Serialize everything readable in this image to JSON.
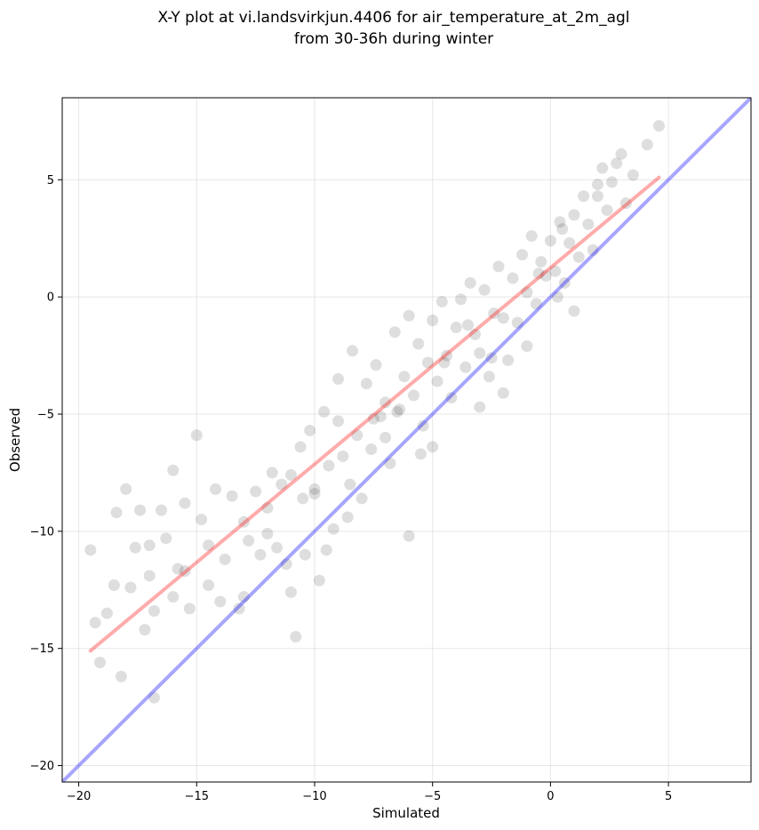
{
  "title_line1": "X-Y plot at vi.landsvirkjun.4406 for air_temperature_at_2m_agl",
  "title_line2": "from 30-36h during winter",
  "chart_data": {
    "type": "scatter",
    "title": "X-Y plot at vi.landsvirkjun.4406 for air_temperature_at_2m_agl from 30-36h during winter",
    "xlabel": "Simulated",
    "ylabel": "Observed",
    "xlim": [
      -20.7,
      8.5
    ],
    "ylim": [
      -20.7,
      8.5
    ],
    "xticks": [
      -20,
      -15,
      -10,
      -5,
      0,
      5
    ],
    "yticks": [
      -20,
      -15,
      -10,
      -5,
      0,
      5
    ],
    "xtick_labels": [
      "−20",
      "−15",
      "−10",
      "−5",
      "0",
      "5"
    ],
    "ytick_labels": [
      "−20",
      "−15",
      "−10",
      "−5",
      "0",
      "5"
    ],
    "grid": true,
    "point_color": "#000000",
    "point_alpha": 0.08,
    "identity_line": {
      "x": [
        -20.7,
        8.5
      ],
      "y": [
        -20.7,
        8.5
      ],
      "color": "#0000ff"
    },
    "fit_line": {
      "x": [
        -19.5,
        4.6
      ],
      "y": [
        -15.1,
        5.1
      ],
      "color": "#ff0000"
    },
    "points": {
      "x": [
        -19.5,
        -19.3,
        -19.1,
        -18.8,
        -18.5,
        -18.4,
        -18.2,
        -18.0,
        -17.8,
        -17.6,
        -17.4,
        -17.2,
        -17.0,
        -16.8,
        -16.8,
        -16.5,
        -16.3,
        -16.0,
        -15.8,
        -15.5,
        -15.3,
        -15.0,
        -14.8,
        -14.5,
        -14.2,
        -14.0,
        -13.8,
        -13.5,
        -13.2,
        -13.0,
        -12.8,
        -12.5,
        -12.3,
        -12.0,
        -11.8,
        -11.6,
        -11.4,
        -11.2,
        -11.0,
        -10.8,
        -10.6,
        -10.4,
        -10.2,
        -10.0,
        -9.8,
        -9.6,
        -9.4,
        -9.2,
        -9.0,
        -8.8,
        -8.6,
        -8.4,
        -8.2,
        -8.0,
        -7.8,
        -7.6,
        -7.4,
        -7.2,
        -7.0,
        -6.8,
        -6.6,
        -6.4,
        -6.2,
        -6.0,
        -5.8,
        -5.6,
        -5.4,
        -5.2,
        -5.0,
        -4.8,
        -4.6,
        -4.4,
        -4.2,
        -4.0,
        -3.8,
        -3.6,
        -3.4,
        -3.2,
        -3.0,
        -2.8,
        -2.6,
        -2.4,
        -2.2,
        -2.0,
        -1.8,
        -1.6,
        -1.4,
        -1.2,
        -1.0,
        -0.8,
        -0.6,
        -0.4,
        -0.2,
        0.0,
        0.2,
        0.4,
        0.6,
        0.8,
        1.0,
        1.2,
        1.4,
        1.6,
        1.8,
        2.0,
        2.2,
        2.4,
        2.6,
        2.8,
        3.0,
        3.2,
        3.5,
        4.1,
        4.6,
        -17.0,
        -12.0,
        -10.5,
        -9.0,
        -6.0,
        -5.0,
        -3.0,
        -1.0,
        1.0,
        2.0,
        -15.5,
        -13.0,
        -11.0,
        -8.5,
        -7.5,
        -4.5,
        -2.5,
        -0.5,
        0.5,
        -16.0,
        -10.0,
        -6.5,
        -3.5,
        -14.5,
        -9.5,
        -7.0,
        -5.5,
        -2.0,
        0.3
      ],
      "y": [
        -10.8,
        -13.9,
        -15.6,
        -13.5,
        -12.3,
        -9.2,
        -16.2,
        -8.2,
        -12.4,
        -10.7,
        -9.1,
        -14.2,
        -10.6,
        -17.1,
        -13.4,
        -9.1,
        -10.3,
        -7.4,
        -11.6,
        -8.8,
        -13.3,
        -5.9,
        -9.5,
        -12.3,
        -8.2,
        -13.0,
        -11.2,
        -8.5,
        -13.3,
        -9.6,
        -10.4,
        -8.3,
        -11.0,
        -9.0,
        -7.5,
        -10.7,
        -8.0,
        -11.4,
        -7.6,
        -14.5,
        -6.4,
        -11.0,
        -5.7,
        -8.4,
        -12.1,
        -4.9,
        -7.2,
        -9.9,
        -3.5,
        -6.8,
        -9.4,
        -2.3,
        -5.9,
        -8.6,
        -3.7,
        -6.5,
        -2.9,
        -5.1,
        -4.5,
        -7.1,
        -1.5,
        -4.8,
        -3.4,
        -0.8,
        -4.2,
        -2.0,
        -5.5,
        -2.8,
        -1.0,
        -3.6,
        -0.2,
        -2.5,
        -4.3,
        -1.3,
        -0.1,
        -3.0,
        0.6,
        -1.6,
        -2.4,
        0.3,
        -3.4,
        -0.7,
        1.3,
        -0.9,
        -2.7,
        0.8,
        -1.1,
        1.8,
        0.2,
        2.6,
        -0.3,
        1.5,
        0.9,
        2.4,
        1.1,
        3.2,
        0.6,
        2.3,
        3.5,
        1.7,
        4.3,
        3.1,
        2.0,
        4.8,
        5.5,
        3.7,
        4.9,
        5.7,
        6.1,
        4.0,
        5.2,
        6.5,
        7.3,
        -11.9,
        -10.1,
        -8.6,
        -5.3,
        -10.2,
        -6.4,
        -4.7,
        -2.1,
        -0.6,
        4.3,
        -11.7,
        -12.8,
        -12.6,
        -8.0,
        -5.2,
        -2.8,
        -2.6,
        1.0,
        2.9,
        -12.8,
        -8.2,
        -4.9,
        -1.2,
        -10.6,
        -10.8,
        -6.0,
        -6.7,
        -4.1,
        0.0
      ]
    }
  }
}
